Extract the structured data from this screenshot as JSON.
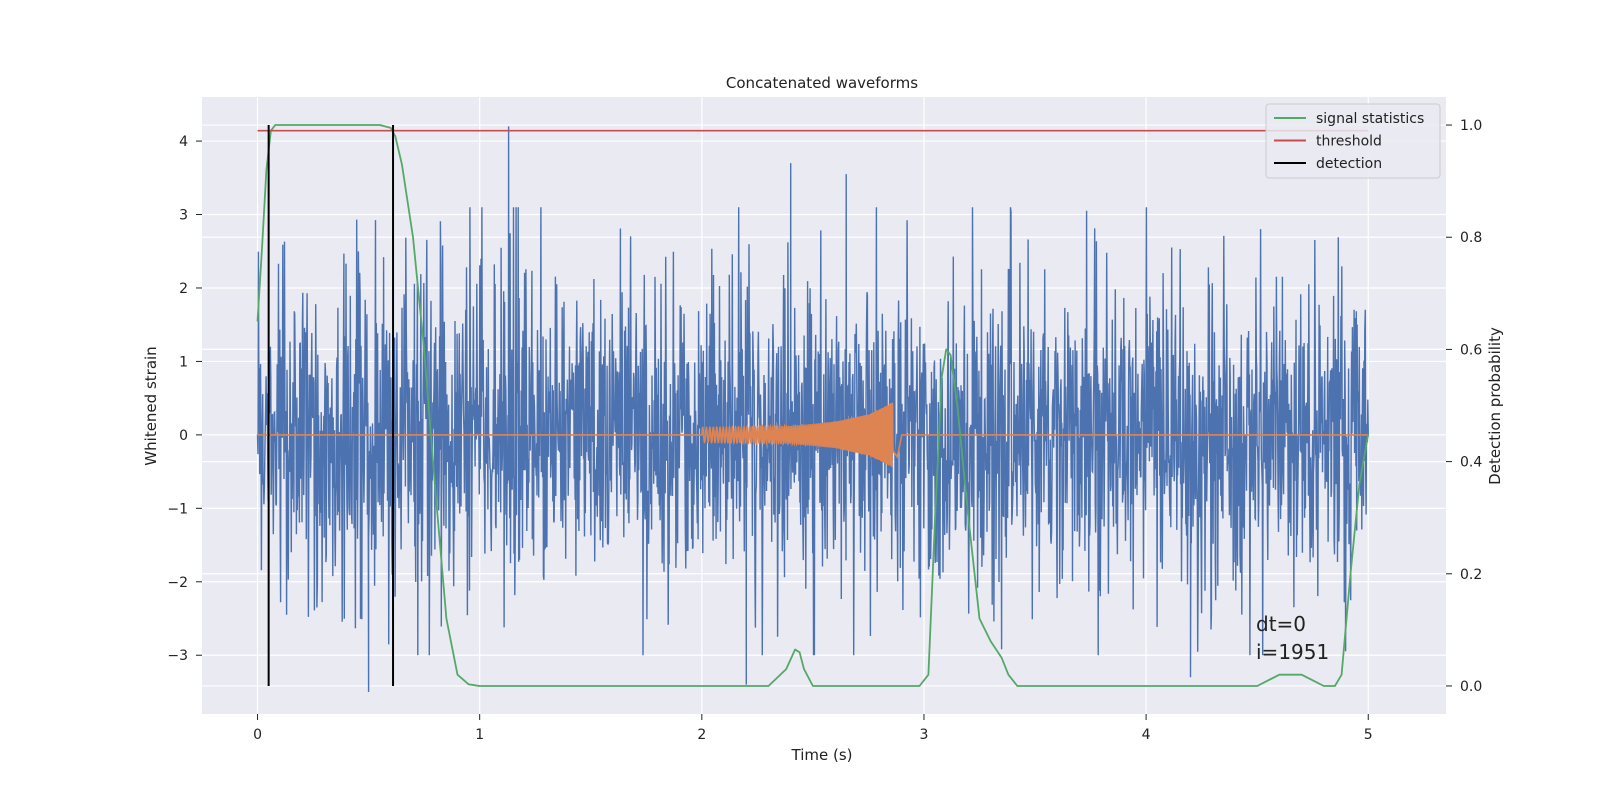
{
  "chart_data": {
    "type": "line",
    "title": "Concatenated waveforms",
    "xlabel": "Time (s)",
    "ylabel": "Whitened strain",
    "y2label": "Detection probability",
    "xlim": [
      -0.25,
      5.35
    ],
    "ylim": [
      -3.8,
      4.6
    ],
    "y2lim": [
      -0.05,
      1.05
    ],
    "xticks": [
      0,
      1,
      2,
      3,
      4,
      5
    ],
    "xtick_labels": [
      "0",
      "1",
      "2",
      "3",
      "4",
      "5"
    ],
    "yticks": [
      -3,
      -2,
      -1,
      0,
      1,
      2,
      3,
      4
    ],
    "ytick_labels": [
      "−3",
      "−2",
      "−1",
      "0",
      "1",
      "2",
      "3",
      "4"
    ],
    "y2ticks": [
      0.0,
      0.2,
      0.4,
      0.6,
      0.8,
      1.0
    ],
    "y2tick_labels": [
      "0.0",
      "0.2",
      "0.4",
      "0.6",
      "0.8",
      "1.0"
    ],
    "grid": true,
    "legend_position": "top-right",
    "legend": [
      {
        "label": "signal statistics",
        "color": "#55a868"
      },
      {
        "label": "threshold",
        "color": "#c44e52"
      },
      {
        "label": "detection",
        "color": "#000000"
      }
    ],
    "colors": {
      "noise": "#4c72b0",
      "waveform": "#dd8452",
      "signal_statistics": "#55a868",
      "threshold": "#c44e52",
      "detection": "#000000",
      "background": "#eaeaf2",
      "grid": "#ffffff"
    },
    "annotation": [
      "dt=0",
      "i=1951"
    ],
    "series": [
      {
        "name": "signal statistics",
        "axis": "right",
        "x": [
          0.0,
          0.02,
          0.04,
          0.06,
          0.08,
          0.1,
          0.2,
          0.3,
          0.4,
          0.5,
          0.55,
          0.6,
          0.62,
          0.65,
          0.7,
          0.75,
          0.8,
          0.85,
          0.9,
          0.95,
          1.0,
          1.5,
          2.0,
          2.2,
          2.3,
          2.38,
          2.42,
          2.44,
          2.46,
          2.5,
          2.55,
          2.6,
          2.8,
          2.98,
          3.02,
          3.05,
          3.08,
          3.1,
          3.12,
          3.15,
          3.2,
          3.25,
          3.3,
          3.35,
          3.38,
          3.42,
          3.5,
          4.0,
          4.4,
          4.5,
          4.55,
          4.6,
          4.7,
          4.75,
          4.8,
          4.85,
          4.88,
          4.92,
          4.96,
          5.0
        ],
        "y": [
          0.65,
          0.78,
          0.92,
          0.99,
          1.0,
          1.0,
          1.0,
          1.0,
          1.0,
          1.0,
          1.0,
          0.995,
          0.98,
          0.93,
          0.8,
          0.6,
          0.35,
          0.12,
          0.02,
          0.003,
          0.0,
          0.0,
          0.0,
          0.0,
          0.0,
          0.03,
          0.065,
          0.06,
          0.03,
          0.0,
          0.0,
          0.0,
          0.0,
          0.0,
          0.02,
          0.3,
          0.55,
          0.6,
          0.59,
          0.5,
          0.3,
          0.12,
          0.08,
          0.05,
          0.02,
          0.0,
          0.0,
          0.0,
          0.0,
          0.0,
          0.01,
          0.02,
          0.02,
          0.01,
          0.0,
          0.0,
          0.02,
          0.2,
          0.36,
          0.45
        ]
      },
      {
        "name": "threshold",
        "axis": "right",
        "x": [
          0.0,
          5.0
        ],
        "y": [
          0.99,
          0.99
        ]
      },
      {
        "name": "detection",
        "axis": "right",
        "type": "vlines",
        "x": [
          0.05,
          0.61
        ],
        "ymin": 0.0,
        "ymax": 1.0
      },
      {
        "name": "",
        "axis": "left",
        "kind": "noise",
        "x_range": [
          0.0,
          5.0
        ],
        "amplitude_range": [
          -3.5,
          4.2
        ],
        "note_peaks": [
          [
            1.13,
            4.2
          ],
          [
            2.4,
            3.7
          ],
          [
            2.65,
            3.55
          ],
          [
            0.5,
            -3.5
          ],
          [
            2.2,
            -3.4
          ],
          [
            4.2,
            -3.3
          ]
        ]
      },
      {
        "name": "",
        "axis": "left",
        "kind": "chirp",
        "x_range": [
          2.0,
          2.86
        ],
        "envelope": [
          [
            2.0,
            0.1
          ],
          [
            2.4,
            0.12
          ],
          [
            2.6,
            0.18
          ],
          [
            2.75,
            0.28
          ],
          [
            2.82,
            0.38
          ],
          [
            2.86,
            0.45
          ]
        ]
      }
    ]
  }
}
